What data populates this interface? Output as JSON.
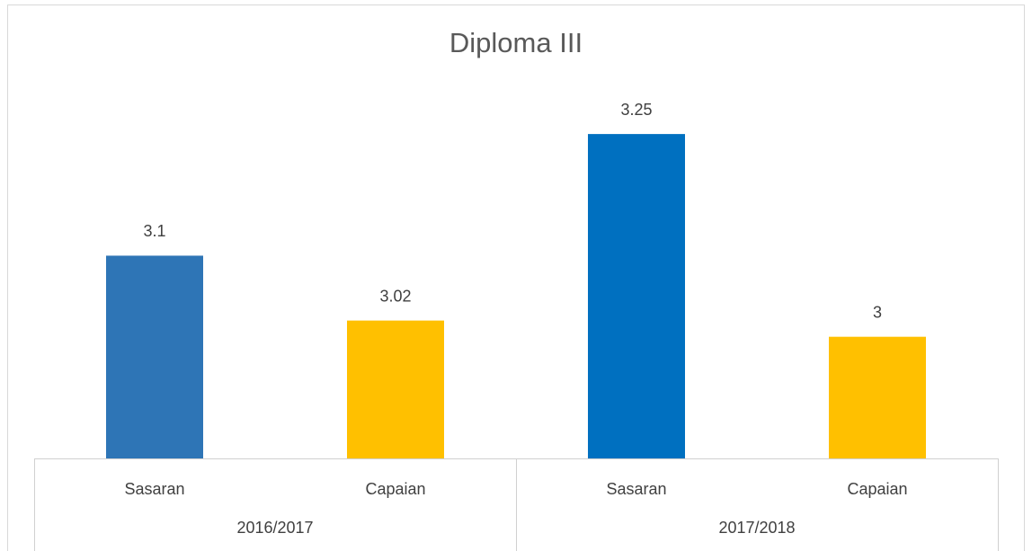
{
  "chart_data": {
    "type": "bar",
    "title": "Diploma III",
    "categories": [
      "Sasaran",
      "Capaian",
      "Sasaran",
      "Capaian"
    ],
    "groups": [
      "2016/2017",
      "2017/2018"
    ],
    "values": [
      3.1,
      3.02,
      3.25,
      3
    ],
    "colors": [
      "#2e75b6",
      "#ffc000",
      "#0070c0",
      "#ffc000"
    ],
    "ylim": [
      2.85,
      3.3
    ]
  }
}
